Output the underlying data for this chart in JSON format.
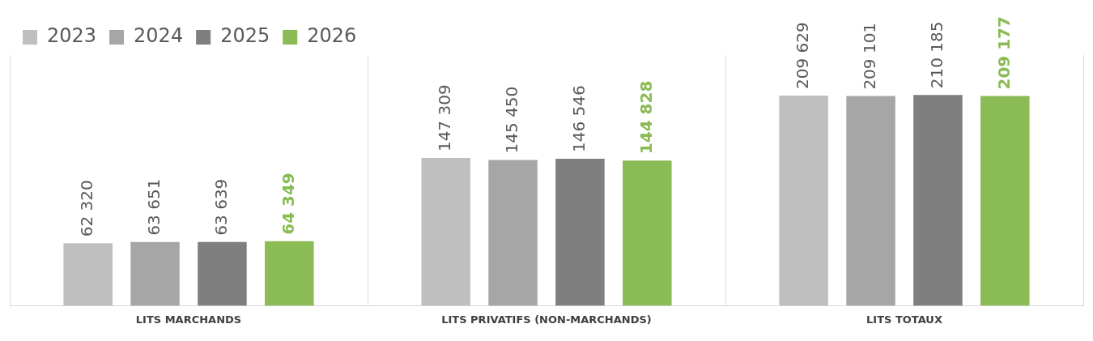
{
  "chart_data": {
    "type": "bar",
    "categories": [
      "LITS MARCHANDS",
      "LITS PRIVATIFS (NON-MARCHANDS)",
      "LITS TOTAUX"
    ],
    "series": [
      {
        "name": "2023",
        "color": "#bfbfbf",
        "values": [
          62320,
          147309,
          209629
        ],
        "value_labels": [
          "62 320",
          "147 309",
          "209 629"
        ]
      },
      {
        "name": "2024",
        "color": "#a6a6a6",
        "values": [
          63651,
          145450,
          209101
        ],
        "value_labels": [
          "63 651",
          "145 450",
          "209 101"
        ]
      },
      {
        "name": "2025",
        "color": "#7f7f7f",
        "values": [
          63639,
          146546,
          210185
        ],
        "value_labels": [
          "63 639",
          "146 546",
          "210 185"
        ]
      },
      {
        "name": "2026",
        "color": "#8abb55",
        "values": [
          64349,
          144828,
          209177
        ],
        "value_labels": [
          "64 349",
          "144 828",
          "209 177"
        ]
      }
    ],
    "grid": "x",
    "legend": "top left"
  }
}
